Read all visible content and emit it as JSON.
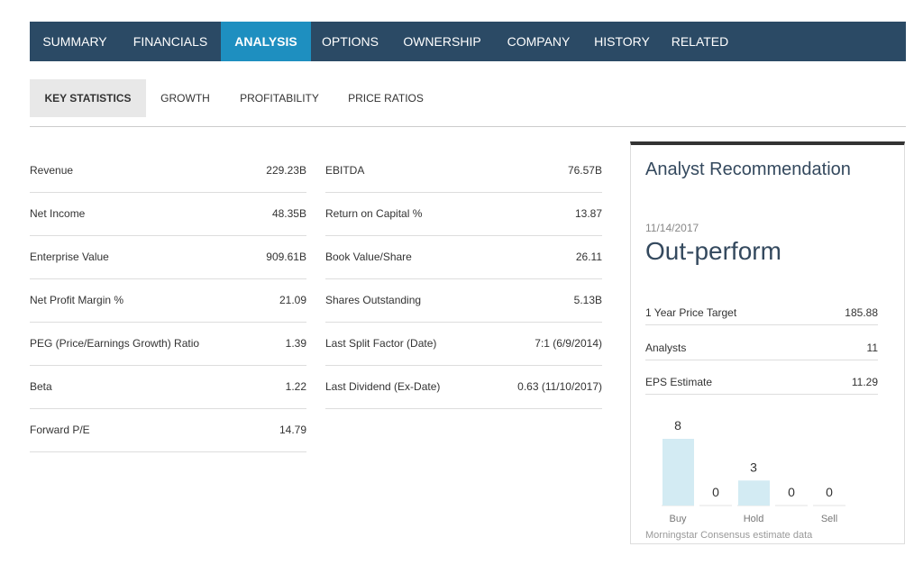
{
  "nav": {
    "tabs": [
      "SUMMARY",
      "FINANCIALS",
      "ANALYSIS",
      "OPTIONS",
      "OWNERSHIP",
      "COMPANY",
      "HISTORY",
      "RELATED"
    ]
  },
  "subtabs": [
    "KEY STATISTICS",
    "GROWTH",
    "PROFITABILITY",
    "PRICE RATIOS"
  ],
  "table": {
    "left": [
      [
        "Revenue",
        "229.23B"
      ],
      [
        "Net Income",
        "48.35B"
      ],
      [
        "Enterprise Value",
        "909.61B"
      ],
      [
        "Net Profit Margin %",
        "21.09"
      ],
      [
        "PEG (Price/Earnings Growth) Ratio",
        "1.39"
      ],
      [
        "Beta",
        "1.22"
      ],
      [
        "Forward P/E",
        "14.79"
      ]
    ],
    "right": [
      [
        "EBITDA",
        "76.57B"
      ],
      [
        "Return on Capital %",
        "13.87"
      ],
      [
        "Book Value/Share",
        "26.11"
      ],
      [
        "Shares Outstanding",
        "5.13B"
      ],
      [
        "Last Split Factor (Date)",
        "7:1 (6/9/2014)"
      ],
      [
        "Last Dividend (Ex-Date)",
        "0.63 (11/10/2017)"
      ]
    ]
  },
  "panel": {
    "title": "Analyst Recommendation",
    "date": "11/14/2017",
    "rating": "Out-perform",
    "rows": [
      [
        "1 Year Price Target",
        "185.88"
      ],
      [
        "Analysts",
        "11"
      ],
      [
        "EPS Estimate",
        "11.29"
      ]
    ],
    "footer": "Morningstar Consensus estimate data"
  },
  "chart_data": {
    "type": "bar",
    "categories": [
      "Buy",
      null,
      "Hold",
      null,
      "Sell"
    ],
    "values": [
      8,
      0,
      3,
      0,
      0
    ],
    "color": "#d3ebf3"
  }
}
